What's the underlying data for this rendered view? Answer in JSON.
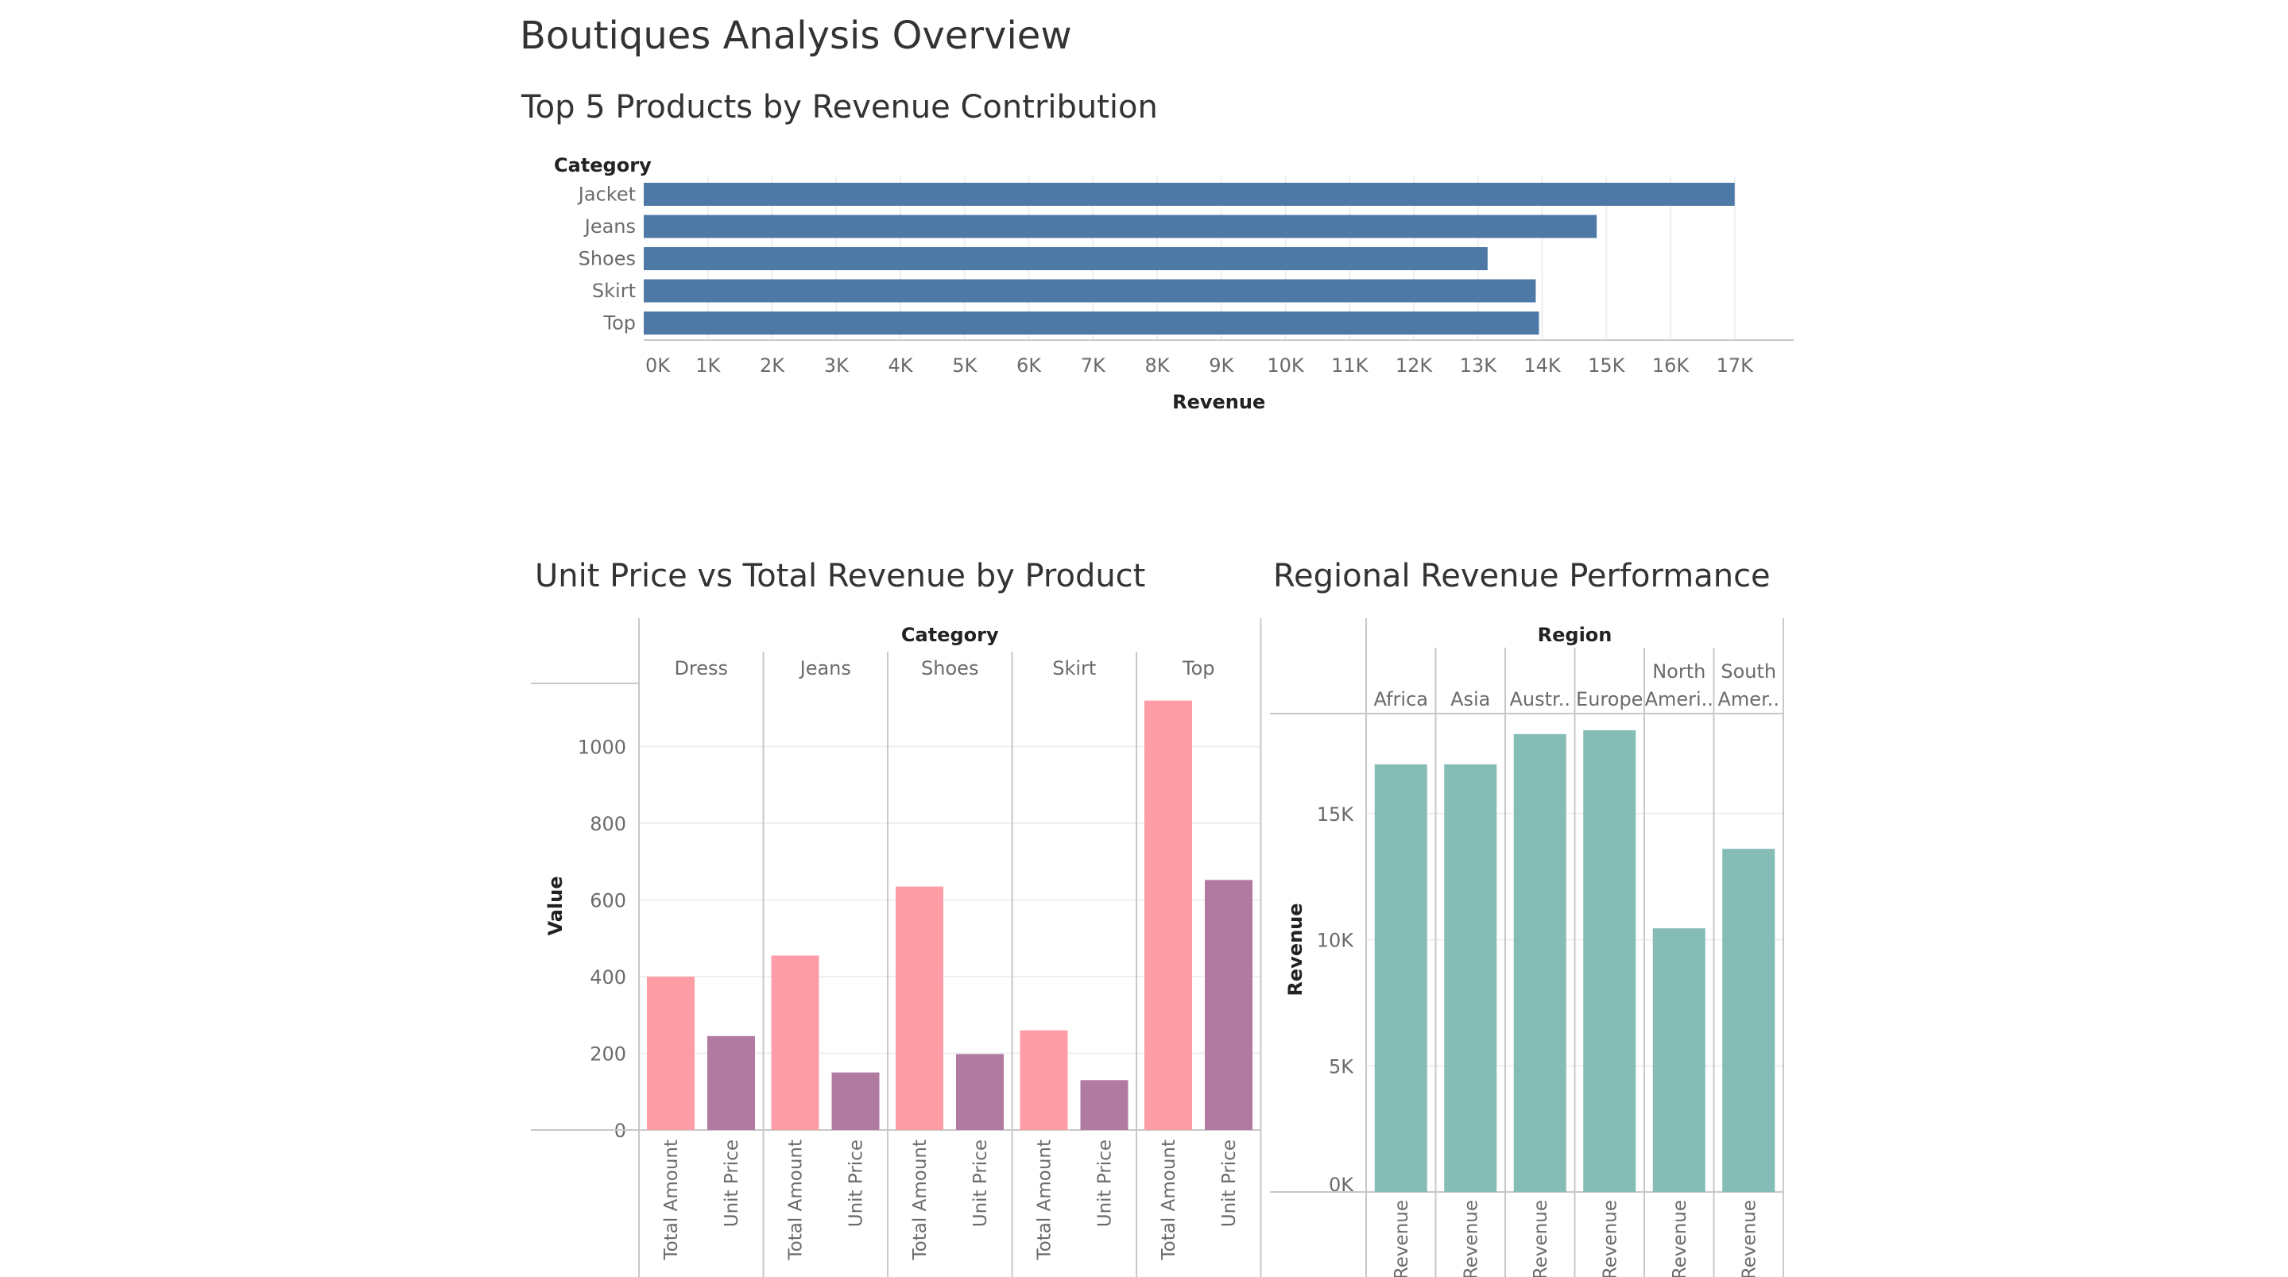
{
  "dashboard_title": "Boutiques Analysis Overview",
  "chart_data": [
    {
      "type": "bar",
      "orientation": "horizontal",
      "title": "Top 5 Products by Revenue Contribution",
      "row_header": "Category",
      "categories": [
        "Jacket",
        "Jeans",
        "Shoes",
        "Skirt",
        "Top"
      ],
      "values": [
        17000,
        14850,
        13150,
        13900,
        13950
      ],
      "xlabel": "Revenue",
      "xlim": [
        0,
        17800
      ],
      "xticks": [
        "0K",
        "1K",
        "2K",
        "3K",
        "4K",
        "5K",
        "6K",
        "7K",
        "8K",
        "9K",
        "10K",
        "11K",
        "12K",
        "13K",
        "14K",
        "15K",
        "16K",
        "17K"
      ],
      "grid": "vertical",
      "color": "#4e79a7"
    },
    {
      "type": "bar",
      "title": "Unit Price vs Total Revenue by Product",
      "column_header": "Category",
      "categories": [
        "Dress",
        "Jeans",
        "Shoes",
        "Skirt",
        "Top"
      ],
      "measure_labels": [
        "Total Amount",
        "Unit Price"
      ],
      "series": [
        {
          "name": "Total Amount",
          "values": [
            400,
            455,
            635,
            260,
            1120
          ],
          "color": "#ff9da7"
        },
        {
          "name": "Unit Price",
          "values": [
            245,
            150,
            198,
            130,
            652
          ],
          "color": "#b07aa1"
        }
      ],
      "ylabel": "Value",
      "ylim": [
        0,
        1160
      ],
      "yticks": [
        "0",
        "200",
        "400",
        "600",
        "800",
        "1000"
      ],
      "grid": "horizontal"
    },
    {
      "type": "bar",
      "title": "Regional Revenue Performance",
      "column_header": "Region",
      "categories": [
        [
          "Africa"
        ],
        [
          "Asia"
        ],
        [
          "Austr.."
        ],
        [
          "Europe"
        ],
        [
          "North",
          "Ameri.."
        ],
        [
          "South",
          "Amer.."
        ]
      ],
      "measure_label": "Revenue",
      "values": [
        16950,
        16950,
        18150,
        18300,
        10450,
        13600
      ],
      "ylabel": "Revenue",
      "ylim": [
        0,
        19000
      ],
      "yticks": [
        "0K",
        "5K",
        "10K",
        "15K"
      ],
      "grid": "horizontal",
      "color": "#86bcb6"
    }
  ]
}
